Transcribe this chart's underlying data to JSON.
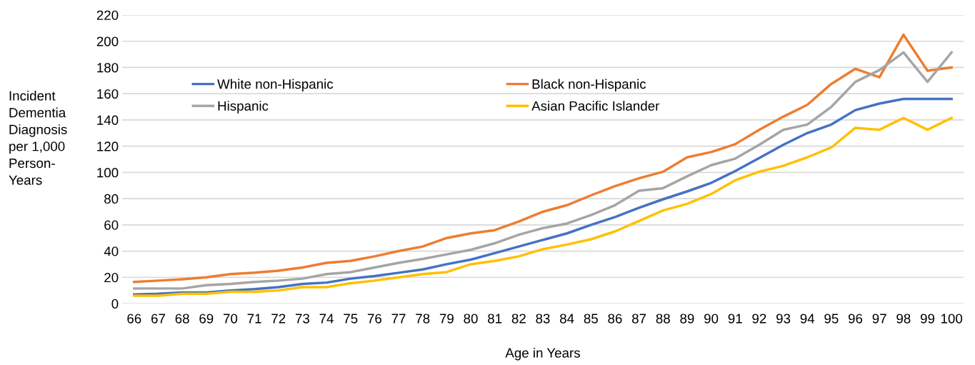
{
  "chart_data": {
    "type": "line",
    "xlabel": "Age in Years",
    "ylabel": "Incident\nDementia\nDiagnosis\nper 1,000\nPerson-\nYears",
    "categories": [
      "66",
      "67",
      "68",
      "69",
      "70",
      "71",
      "72",
      "73",
      "74",
      "75",
      "76",
      "77",
      "78",
      "79",
      "80",
      "81",
      "82",
      "83",
      "84",
      "85",
      "86",
      "87",
      "88",
      "89",
      "90",
      "91",
      "92",
      "93",
      "94",
      "95",
      "96",
      "97",
      "98",
      "99",
      "100"
    ],
    "series": [
      {
        "name": "White non-Hispanic",
        "color": "#4472c4",
        "values": [
          7,
          7.5,
          8.5,
          8.5,
          10,
          11,
          12.5,
          15,
          16,
          19,
          21,
          23.5,
          26,
          30,
          33.5,
          38.5,
          43.5,
          48.5,
          53.5,
          60,
          66,
          73,
          79.5,
          85.5,
          92,
          101,
          111,
          121,
          130,
          136.5,
          147.5,
          152.5,
          156,
          156,
          156
        ]
      },
      {
        "name": "Black non-Hispanic",
        "color": "#ed7d31",
        "values": [
          16.5,
          17.5,
          18.5,
          20,
          22.5,
          23.5,
          25,
          27.5,
          31,
          32.5,
          36,
          40,
          43.5,
          50,
          53.5,
          56,
          62.5,
          70,
          75,
          82.5,
          89.5,
          95.5,
          100.5,
          111.5,
          115.5,
          121.5,
          132.5,
          142.5,
          151.5,
          167.5,
          179,
          172.5,
          205,
          177.5,
          180
        ]
      },
      {
        "name": "Hispanic",
        "color": "#a5a5a5",
        "values": [
          11.5,
          11.5,
          11.5,
          14,
          15,
          16.5,
          17.5,
          19,
          22.5,
          24,
          27.5,
          31,
          34,
          37.5,
          41,
          46,
          52.5,
          57.5,
          61,
          67.5,
          75,
          86,
          88,
          97,
          105.5,
          110.5,
          121,
          132.5,
          136.5,
          150,
          169,
          178,
          191.5,
          169,
          191.5
        ]
      },
      {
        "name": "Asian Pacific Islander",
        "color": "#ffc000",
        "values": [
          6,
          6,
          7.5,
          7.5,
          9,
          9,
          10,
          12.5,
          12.5,
          15.5,
          17.5,
          20,
          22.5,
          24,
          30,
          32.5,
          36,
          41.5,
          45,
          49,
          55,
          63,
          71,
          76,
          83.5,
          94,
          100.5,
          105,
          111.5,
          119,
          134,
          132.5,
          141.5,
          132.5,
          141.5
        ]
      }
    ],
    "ylim": [
      0,
      220
    ],
    "yticks": [
      0,
      20,
      40,
      60,
      80,
      100,
      120,
      140,
      160,
      180,
      200,
      220
    ],
    "grid": "y",
    "legend": "top left",
    "marker": "none",
    "line_style": "solid"
  }
}
